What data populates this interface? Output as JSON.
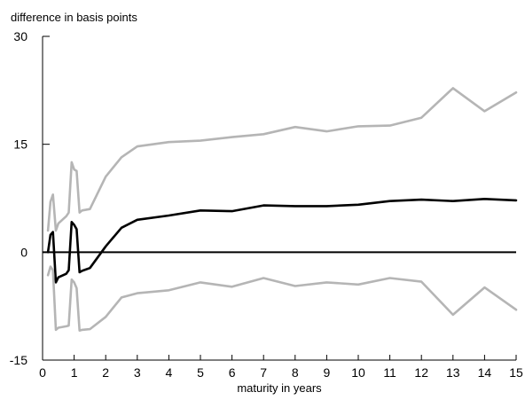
{
  "chart_data": {
    "type": "line",
    "title": "",
    "ylabel": "difference in basis points",
    "xlabel": "maturity in years",
    "xlim": [
      0,
      15
    ],
    "ylim": [
      -15,
      30
    ],
    "x_ticks": [
      "0",
      "1",
      "2",
      "3",
      "4",
      "5",
      "6",
      "7",
      "8",
      "9",
      "10",
      "11",
      "12",
      "13",
      "14",
      "15"
    ],
    "y_ticks": [
      "30",
      "15",
      "0",
      "-15"
    ],
    "grid": false,
    "legend": "none",
    "zero_line": 0,
    "series": [
      {
        "role": "upper-band",
        "color": "#b5b5b5",
        "points": [
          [
            0.17,
            3.0
          ],
          [
            0.25,
            7.0
          ],
          [
            0.33,
            8.0
          ],
          [
            0.42,
            3.0
          ],
          [
            0.5,
            4.0
          ],
          [
            0.75,
            5.0
          ],
          [
            0.83,
            5.5
          ],
          [
            0.92,
            12.5
          ],
          [
            1.0,
            11.5
          ],
          [
            1.08,
            11.3
          ],
          [
            1.17,
            5.5
          ],
          [
            1.25,
            5.8
          ],
          [
            1.5,
            6.0
          ],
          [
            2.0,
            10.5
          ],
          [
            2.5,
            13.2
          ],
          [
            3.0,
            14.7
          ],
          [
            4.0,
            15.3
          ],
          [
            5.0,
            15.5
          ],
          [
            6.0,
            16.0
          ],
          [
            7.0,
            16.4
          ],
          [
            8.0,
            17.4
          ],
          [
            9.0,
            16.8
          ],
          [
            10.0,
            17.5
          ],
          [
            11.0,
            17.6
          ],
          [
            12.0,
            18.7
          ],
          [
            13.0,
            22.8
          ],
          [
            14.0,
            19.6
          ],
          [
            15.0,
            22.2
          ]
        ]
      },
      {
        "role": "estimate",
        "color": "#000000",
        "points": [
          [
            0.17,
            0.0
          ],
          [
            0.25,
            2.4
          ],
          [
            0.33,
            2.8
          ],
          [
            0.42,
            -4.2
          ],
          [
            0.5,
            -3.5
          ],
          [
            0.75,
            -3.0
          ],
          [
            0.83,
            -2.5
          ],
          [
            0.92,
            4.2
          ],
          [
            1.0,
            3.8
          ],
          [
            1.08,
            3.2
          ],
          [
            1.17,
            -2.8
          ],
          [
            1.25,
            -2.6
          ],
          [
            1.5,
            -2.2
          ],
          [
            2.0,
            0.8
          ],
          [
            2.5,
            3.4
          ],
          [
            3.0,
            4.5
          ],
          [
            4.0,
            5.1
          ],
          [
            5.0,
            5.8
          ],
          [
            6.0,
            5.7
          ],
          [
            7.0,
            6.5
          ],
          [
            8.0,
            6.4
          ],
          [
            9.0,
            6.4
          ],
          [
            10.0,
            6.6
          ],
          [
            11.0,
            7.1
          ],
          [
            12.0,
            7.3
          ],
          [
            13.0,
            7.1
          ],
          [
            14.0,
            7.4
          ],
          [
            15.0,
            7.2
          ]
        ]
      },
      {
        "role": "lower-band",
        "color": "#b5b5b5",
        "points": [
          [
            0.17,
            -3.2
          ],
          [
            0.25,
            -2.0
          ],
          [
            0.33,
            -2.5
          ],
          [
            0.42,
            -10.8
          ],
          [
            0.5,
            -10.5
          ],
          [
            0.75,
            -10.3
          ],
          [
            0.83,
            -10.2
          ],
          [
            0.92,
            -3.8
          ],
          [
            1.0,
            -4.2
          ],
          [
            1.08,
            -5.0
          ],
          [
            1.17,
            -10.9
          ],
          [
            1.25,
            -10.8
          ],
          [
            1.5,
            -10.7
          ],
          [
            2.0,
            -9.0
          ],
          [
            2.5,
            -6.3
          ],
          [
            3.0,
            -5.7
          ],
          [
            4.0,
            -5.3
          ],
          [
            5.0,
            -4.2
          ],
          [
            6.0,
            -4.8
          ],
          [
            7.0,
            -3.6
          ],
          [
            8.0,
            -4.7
          ],
          [
            9.0,
            -4.2
          ],
          [
            10.0,
            -4.5
          ],
          [
            11.0,
            -3.6
          ],
          [
            12.0,
            -4.1
          ],
          [
            13.0,
            -8.7
          ],
          [
            14.0,
            -4.9
          ],
          [
            15.0,
            -8.0
          ]
        ]
      }
    ]
  }
}
